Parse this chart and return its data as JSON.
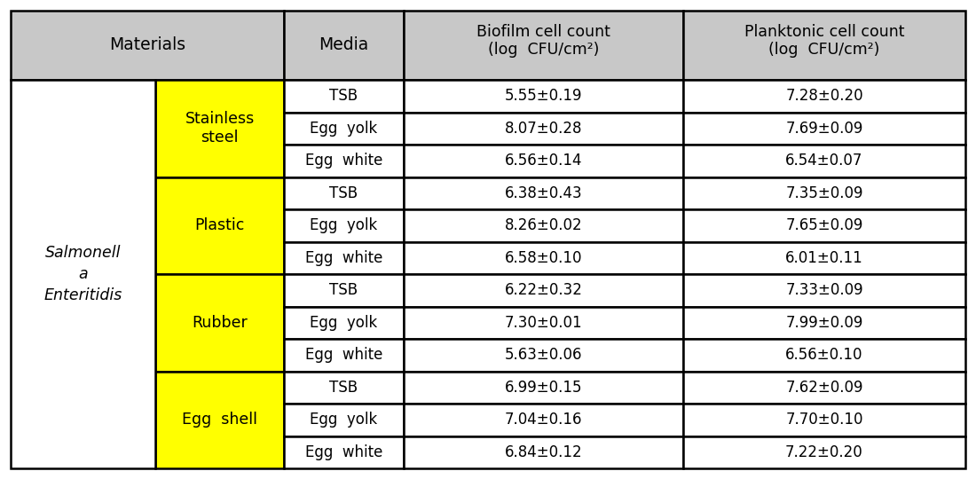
{
  "materials": [
    "Stainless\nsteel",
    "Plastic",
    "Rubber",
    "Egg  shell"
  ],
  "media": [
    "TSB",
    "Egg  yolk",
    "Egg  white",
    "TSB",
    "Egg  yolk",
    "Egg  white",
    "TSB",
    "Egg  yolk",
    "Egg  white",
    "TSB",
    "Egg  yolk",
    "Egg  white"
  ],
  "biofilm": [
    "5.55±0.19",
    "8.07±0.28",
    "6.56±0.14",
    "6.38±0.43",
    "8.26±0.02",
    "6.58±0.10",
    "6.22±0.32",
    "7.30±0.01",
    "5.63±0.06",
    "6.99±0.15",
    "7.04±0.16",
    "6.84±0.12"
  ],
  "planktonic": [
    "7.28±0.20",
    "7.69±0.09",
    "6.54±0.07",
    "7.35±0.09",
    "7.65±0.09",
    "6.01±0.11",
    "7.33±0.09",
    "7.99±0.09",
    "6.56±0.10",
    "7.62±0.09",
    "7.70±0.10",
    "7.22±0.20"
  ],
  "header_bg": "#c8c8c8",
  "material_bg": "#ffff00",
  "white_bg": "#ffffff",
  "border_color": "#000000",
  "text_color": "#000000",
  "fig_bg": "#ffffff",
  "salmonella_lines": [
    "Salmonell",
    "a",
    "Enteritidis"
  ]
}
